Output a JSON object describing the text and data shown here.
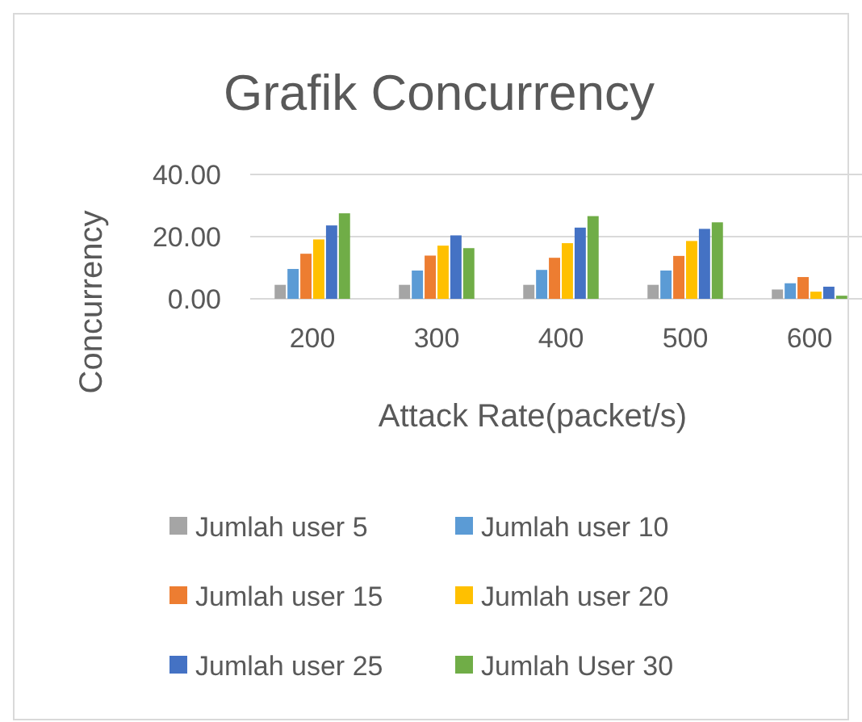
{
  "chart_data": {
    "type": "bar",
    "title": "Grafik Concurrency",
    "xlabel": "Attack  Rate(packet/s)",
    "ylabel": "Concurrency",
    "categories": [
      "200",
      "300",
      "400",
      "500",
      "600"
    ],
    "series": [
      {
        "name": "Jumlah user 5",
        "color": "#a5a5a5",
        "values": [
          4.5,
          4.5,
          4.5,
          4.5,
          3.0
        ]
      },
      {
        "name": "Jumlah user 10",
        "color": "#5b9bd5",
        "values": [
          9.6,
          9.1,
          9.3,
          9.1,
          5.0
        ]
      },
      {
        "name": "Jumlah user 15",
        "color": "#ed7d31",
        "values": [
          14.5,
          13.9,
          13.2,
          13.8,
          7.0
        ]
      },
      {
        "name": "Jumlah user 20",
        "color": "#ffc000",
        "values": [
          19.1,
          17.1,
          17.9,
          18.6,
          2.3
        ]
      },
      {
        "name": "Jumlah user 25",
        "color": "#4472c4",
        "values": [
          23.6,
          20.4,
          22.9,
          22.5,
          3.9
        ]
      },
      {
        "name": "Jumlah User 30",
        "color": "#70ad47",
        "values": [
          27.5,
          16.3,
          26.6,
          24.6,
          1.0
        ]
      }
    ],
    "ylim": [
      0,
      40
    ],
    "yticks": [
      {
        "value": 0,
        "label": "0.00"
      },
      {
        "value": 20,
        "label": "20.00"
      },
      {
        "value": 40,
        "label": "40.00"
      }
    ],
    "grid": "y",
    "legend": "bottom"
  }
}
